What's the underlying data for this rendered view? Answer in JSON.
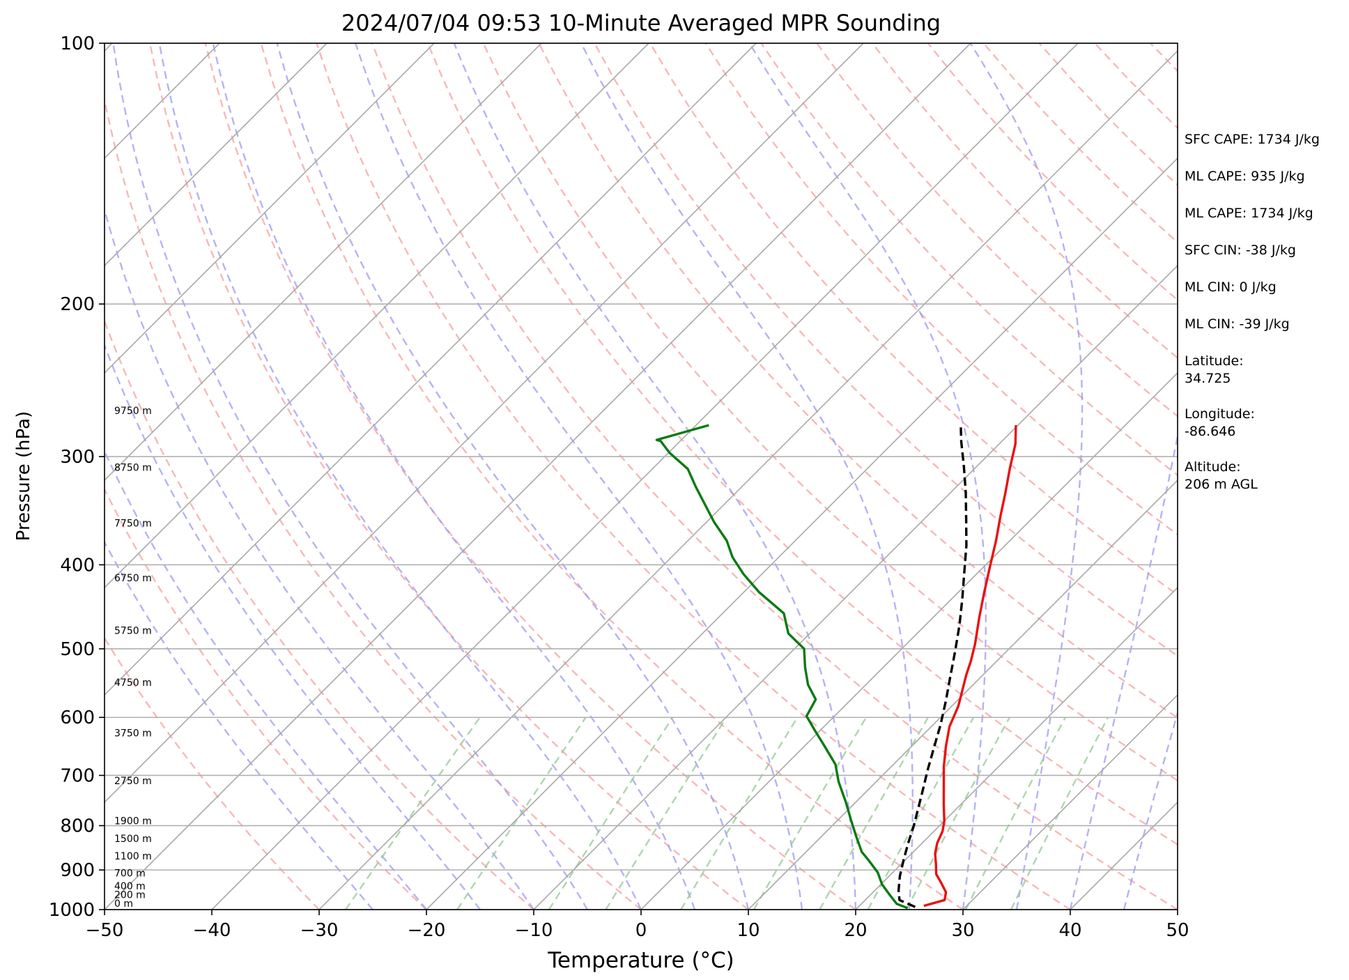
{
  "chart_data": {
    "type": "line",
    "title": "2024/07/04 09:53 10-Minute Averaged MPR Sounding",
    "xlabel": "Temperature (°C)",
    "ylabel": "Pressure (hPa)",
    "xlim": [
      -50,
      50
    ],
    "ylim": [
      1000,
      100
    ],
    "yscale": "log",
    "x_ticks": [
      -50,
      -40,
      -30,
      -20,
      -10,
      0,
      10,
      20,
      30,
      40,
      50
    ],
    "x_tick_labels": [
      "−50",
      "−40",
      "−30",
      "−20",
      "−10",
      "0",
      "10",
      "20",
      "30",
      "40",
      "50"
    ],
    "y_ticks": [
      1000,
      900,
      800,
      700,
      600,
      500,
      400,
      300,
      200,
      100
    ],
    "y_tick_labels": [
      "1000",
      "900",
      "800",
      "700",
      "600",
      "500",
      "400",
      "300",
      "200",
      "100"
    ],
    "grid": "horizontal",
    "series": [
      {
        "color": "#e8110f",
        "style": "solid",
        "points": [
          [
            26,
            990
          ],
          [
            27.4,
            975
          ],
          [
            26.8,
            955
          ],
          [
            25.4,
            930
          ],
          [
            24.2,
            910
          ],
          [
            23.2,
            885
          ],
          [
            22.2,
            862
          ],
          [
            21.4,
            838
          ],
          [
            20.8,
            812
          ],
          [
            20,
            790
          ],
          [
            18.4,
            756
          ],
          [
            16.6,
            718
          ],
          [
            14.9,
            684
          ],
          [
            13.2,
            648
          ],
          [
            11.7,
            615
          ],
          [
            10.6,
            582
          ],
          [
            9.5,
            558
          ],
          [
            8.4,
            535
          ],
          [
            7.6,
            517
          ],
          [
            6.4,
            494
          ],
          [
            4.3,
            460
          ],
          [
            2.4,
            430
          ],
          [
            0.5,
            401
          ],
          [
            -1.3,
            375
          ],
          [
            -3.2,
            351
          ],
          [
            -4.9,
            330
          ],
          [
            -6.7,
            310
          ],
          [
            -8.5,
            290
          ],
          [
            -10.2,
            276
          ]
        ]
      },
      {
        "color": "#0a7a10",
        "style": "solid",
        "points": [
          [
            24.7,
            996
          ],
          [
            23.3,
            985
          ],
          [
            21.7,
            960
          ],
          [
            20.1,
            935
          ],
          [
            18.6,
            906
          ],
          [
            16.6,
            877
          ],
          [
            15.2,
            858
          ],
          [
            13.5,
            828
          ],
          [
            11.5,
            793
          ],
          [
            9.1,
            752
          ],
          [
            6.5,
            712
          ],
          [
            4.6,
            680
          ],
          [
            1.9,
            648
          ],
          [
            -0.6,
            620
          ],
          [
            -2.6,
            598
          ],
          [
            -3.3,
            572
          ],
          [
            -5.4,
            550
          ],
          [
            -7.3,
            525
          ],
          [
            -9.1,
            500
          ],
          [
            -12,
            480
          ],
          [
            -14.3,
            455
          ],
          [
            -18.6,
            430
          ],
          [
            -21.7,
            410
          ],
          [
            -24.3,
            392
          ],
          [
            -26.4,
            375
          ],
          [
            -29.3,
            357
          ],
          [
            -31.9,
            340
          ],
          [
            -34.3,
            325
          ],
          [
            -36.7,
            310
          ],
          [
            -39.9,
            297
          ],
          [
            -41.8,
            288
          ],
          [
            -42.3,
            287
          ],
          [
            -38.8,
            276
          ]
        ]
      },
      {
        "color": "#000000",
        "style": "dashed",
        "points": [
          [
            25.3,
            993
          ],
          [
            23.2,
            975
          ],
          [
            22.2,
            950
          ],
          [
            21,
            915
          ],
          [
            19.8,
            875
          ],
          [
            18.7,
            838
          ],
          [
            17.6,
            800
          ],
          [
            16.6,
            770
          ],
          [
            15.2,
            730
          ],
          [
            13.7,
            690
          ],
          [
            12.2,
            650
          ],
          [
            10.7,
            612
          ],
          [
            9,
            575
          ],
          [
            7.2,
            540
          ],
          [
            5.3,
            505
          ],
          [
            3.2,
            470
          ],
          [
            1,
            438
          ],
          [
            -1.3,
            408
          ],
          [
            -3.6,
            380
          ],
          [
            -6.1,
            354
          ],
          [
            -8.6,
            330
          ],
          [
            -11.2,
            308
          ],
          [
            -13.8,
            288
          ],
          [
            -15.2,
            277
          ]
        ]
      }
    ],
    "height_labels": [
      {
        "text": "0 m",
        "p": 1000
      },
      {
        "text": "200 m",
        "p": 977
      },
      {
        "text": "400 m",
        "p": 955
      },
      {
        "text": "700 m",
        "p": 923
      },
      {
        "text": "1100 m",
        "p": 882
      },
      {
        "text": "1500 m",
        "p": 842
      },
      {
        "text": "1900 m",
        "p": 803
      },
      {
        "text": "2750 m",
        "p": 722
      },
      {
        "text": "3750 m",
        "p": 636
      },
      {
        "text": "4750 m",
        "p": 556
      },
      {
        "text": "5750 m",
        "p": 484
      },
      {
        "text": "6750 m",
        "p": 421
      },
      {
        "text": "7750 m",
        "p": 364
      },
      {
        "text": "8750 m",
        "p": 314
      },
      {
        "text": "9750 m",
        "p": 270
      }
    ],
    "background_lines": {
      "isotherms_skewed": true,
      "dry_adiabats_color": "#f4a0a0",
      "moist_adiabats_color": "#9a9af0",
      "mixing_ratio_color": "#90c890",
      "isotherm_color": "#a8a8a8"
    }
  },
  "info": {
    "sfc_cape": "SFC CAPE: 1734 J/kg",
    "ml_cape_1": "ML CAPE: 935 J/kg",
    "ml_cape_2": "ML CAPE: 1734 J/kg",
    "sfc_cin": "SFC CIN: -38 J/kg",
    "ml_cin_1": "ML CIN: 0 J/kg",
    "ml_cin_2": "ML CIN: -39 J/kg",
    "latitude_label": "Latitude:",
    "latitude_value": "34.725",
    "longitude_label": "Longitude:",
    "longitude_value": "-86.646",
    "altitude_label": "Altitude:",
    "altitude_value": "206 m AGL"
  }
}
